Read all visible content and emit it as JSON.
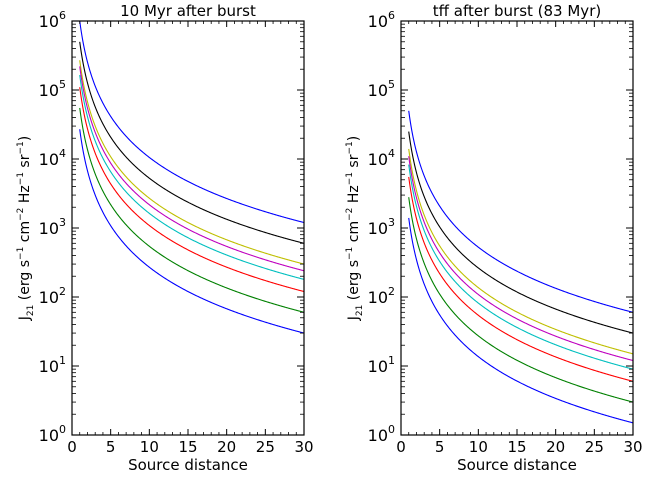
{
  "chart_data": [
    {
      "type": "line",
      "title": "10 Myr after burst",
      "xlabel": "Source distance",
      "ylabel": "J21 (erg s^-1 cm^-2 Hz^-1 sr^-1)",
      "ylabel_parts": [
        "J",
        "21",
        " (erg s",
        "−1",
        " cm",
        "−2",
        " Hz",
        "−1",
        " sr",
        "−1",
        ")"
      ],
      "x_ticks": [
        "0",
        "5",
        "10",
        "15",
        "20",
        "25",
        "30"
      ],
      "y_ticks": [
        {
          "base": "10",
          "exp": "0"
        },
        {
          "base": "10",
          "exp": "1"
        },
        {
          "base": "10",
          "exp": "2"
        },
        {
          "base": "10",
          "exp": "3"
        },
        {
          "base": "10",
          "exp": "4"
        },
        {
          "base": "10",
          "exp": "5"
        },
        {
          "base": "10",
          "exp": "6"
        }
      ],
      "xlim": [
        0,
        30
      ],
      "ylim": [
        1,
        1000000
      ],
      "yscale": "log",
      "x_start": 1,
      "series": [
        {
          "color": "#0000ff",
          "values_at_x30": 1200,
          "values_at_x1": 1000000
        },
        {
          "color": "#000000",
          "values_at_x30": 600,
          "values_at_x1": 500000
        },
        {
          "color": "#bfbf00",
          "values_at_x30": 300,
          "values_at_x1": 270000
        },
        {
          "color": "#bf00bf",
          "values_at_x30": 240,
          "values_at_x1": 220000
        },
        {
          "color": "#00bfbf",
          "values_at_x30": 180,
          "values_at_x1": 165000
        },
        {
          "color": "#ff0000",
          "values_at_x30": 120,
          "values_at_x1": 110000
        },
        {
          "color": "#008000",
          "values_at_x30": 60,
          "values_at_x1": 55000
        },
        {
          "color": "#0000ff",
          "values_at_x30": 30,
          "values_at_x1": 27000
        }
      ]
    },
    {
      "type": "line",
      "title": "tff after burst (83 Myr)",
      "xlabel": "Source distance",
      "ylabel": "J21 (erg s^-1 cm^-2 Hz^-1 sr^-1)",
      "ylabel_parts": [
        "J",
        "21",
        " (erg s",
        "−1",
        " cm",
        "−2",
        " Hz",
        "−1",
        " sr",
        "−1",
        ")"
      ],
      "x_ticks": [
        "0",
        "5",
        "10",
        "15",
        "20",
        "25",
        "30"
      ],
      "y_ticks": [
        {
          "base": "10",
          "exp": "0"
        },
        {
          "base": "10",
          "exp": "1"
        },
        {
          "base": "10",
          "exp": "2"
        },
        {
          "base": "10",
          "exp": "3"
        },
        {
          "base": "10",
          "exp": "4"
        },
        {
          "base": "10",
          "exp": "5"
        },
        {
          "base": "10",
          "exp": "6"
        }
      ],
      "xlim": [
        0,
        30
      ],
      "ylim": [
        1,
        1000000
      ],
      "yscale": "log",
      "x_start": 1,
      "series": [
        {
          "color": "#0000ff",
          "values_at_x30": 60,
          "values_at_x1": 50000
        },
        {
          "color": "#000000",
          "values_at_x30": 30,
          "values_at_x1": 25000
        },
        {
          "color": "#bfbf00",
          "values_at_x30": 15,
          "values_at_x1": 14000
        },
        {
          "color": "#bf00bf",
          "values_at_x30": 12,
          "values_at_x1": 11000
        },
        {
          "color": "#00bfbf",
          "values_at_x30": 9,
          "values_at_x1": 8300
        },
        {
          "color": "#ff0000",
          "values_at_x30": 6,
          "values_at_x1": 5500
        },
        {
          "color": "#008000",
          "values_at_x30": 3,
          "values_at_x1": 2800
        },
        {
          "color": "#0000ff",
          "values_at_x30": 1.5,
          "values_at_x1": 1400
        }
      ]
    }
  ]
}
